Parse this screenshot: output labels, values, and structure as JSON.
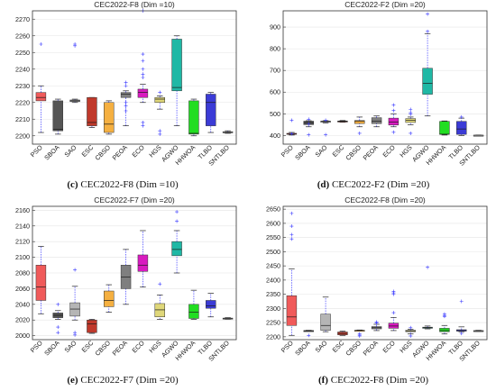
{
  "chart_data": [
    {
      "type": "box",
      "title": "CEC2022-F8 (Dim =10)",
      "caption_letter": "(c)",
      "caption_text": "CEC2022-F8 (Dim =10)",
      "ylim": [
        2195,
        2275
      ],
      "yticks": [
        2200,
        2210,
        2220,
        2230,
        2240,
        2250,
        2260,
        2270
      ],
      "categories": [
        "PSO",
        "SBOA",
        "SAO",
        "ESC",
        "CBSO",
        "PEOA",
        "ECO",
        "HGS",
        "AGWO",
        "HHWOA",
        "TLBO",
        "SNTLBO"
      ],
      "colors": [
        "#f05a5a",
        "#555555",
        "#b5b5b5",
        "#c0392b",
        "#f5b041",
        "#7f7f7f",
        "#d81bc0",
        "#dfd77a",
        "#1fb8a5",
        "#22dd22",
        "#3b3bd6",
        "#bbbbbb"
      ],
      "boxes": [
        {
          "whislo": 2202,
          "q1": 2221,
          "med": 2223,
          "q3": 2226,
          "whishi": 2230,
          "fliers": [
            2255
          ]
        },
        {
          "whislo": 2201,
          "q1": 2203,
          "med": 2204,
          "q3": 2221,
          "whishi": 2222,
          "fliers": []
        },
        {
          "whislo": 2220,
          "q1": 2220.5,
          "med": 2221,
          "q3": 2221.5,
          "whishi": 2222,
          "fliers": [
            2254,
            2255
          ]
        },
        {
          "whislo": 2205,
          "q1": 2206,
          "med": 2208,
          "q3": 2223,
          "whishi": 2223,
          "fliers": []
        },
        {
          "whislo": 2201,
          "q1": 2202,
          "med": 2207,
          "q3": 2220,
          "whishi": 2221,
          "fliers": []
        },
        {
          "whislo": 2206,
          "q1": 2223,
          "med": 2225,
          "q3": 2226,
          "whishi": 2227,
          "fliers": [
            2230,
            2232,
            2220,
            2218,
            2215
          ]
        },
        {
          "whislo": 2220,
          "q1": 2223,
          "med": 2226,
          "q3": 2228,
          "whishi": 2231,
          "fliers": [
            2275,
            2249,
            2245,
            2240,
            2237,
            2235,
            2208,
            2206
          ]
        },
        {
          "whislo": 2216,
          "q1": 2220,
          "med": 2222,
          "q3": 2223,
          "whishi": 2224,
          "fliers": [
            2226,
            2203,
            2201
          ]
        },
        {
          "whislo": 2206,
          "q1": 2227,
          "med": 2229,
          "q3": 2258,
          "whishi": 2260,
          "fliers": []
        },
        {
          "whislo": 2200,
          "q1": 2201,
          "med": 2201.5,
          "q3": 2221,
          "whishi": 2222,
          "fliers": []
        },
        {
          "whislo": 2202,
          "q1": 2206,
          "med": 2220,
          "q3": 2225,
          "whishi": 2226,
          "fliers": []
        },
        {
          "whislo": 2201.5,
          "q1": 2201.8,
          "med": 2202,
          "q3": 2202.5,
          "whishi": 2203,
          "fliers": []
        }
      ]
    },
    {
      "type": "box",
      "title": "CEC2022-F2 (Dim =20)",
      "caption_letter": "(d)",
      "caption_text": "CEC2022-F2 (Dim =20)",
      "ylim": [
        360,
        975
      ],
      "yticks": [
        400,
        500,
        600,
        700,
        800,
        900
      ],
      "categories": [
        "PSO",
        "SBOA",
        "SAO",
        "ESC",
        "CBSO",
        "PEOA",
        "ECO",
        "HGS",
        "AGWO",
        "HHWOA",
        "TLBO",
        "SNTLBO"
      ],
      "colors": [
        "#f05a5a",
        "#555555",
        "#b5b5b5",
        "#c0392b",
        "#f5b041",
        "#7f7f7f",
        "#d81bc0",
        "#dfd77a",
        "#1fb8a5",
        "#22dd22",
        "#3b3bd6",
        "#bbbbbb"
      ],
      "boxes": [
        {
          "whislo": 402,
          "q1": 405,
          "med": 408,
          "q3": 410,
          "whishi": 414,
          "fliers": [
            470,
            408
          ]
        },
        {
          "whislo": 440,
          "q1": 450,
          "med": 459,
          "q3": 466,
          "whishi": 468,
          "fliers": [
            403,
            475,
            454
          ]
        },
        {
          "whislo": 458,
          "q1": 461,
          "med": 465,
          "q3": 466,
          "whishi": 468,
          "fliers": [
            403,
            470
          ]
        },
        {
          "whislo": 461,
          "q1": 463,
          "med": 465,
          "q3": 467,
          "whishi": 469,
          "fliers": []
        },
        {
          "whislo": 440,
          "q1": 455,
          "med": 465,
          "q3": 469,
          "whishi": 485,
          "fliers": [
            410
          ]
        },
        {
          "whislo": 440,
          "q1": 455,
          "med": 466,
          "q3": 482,
          "whishi": 490,
          "fliers": []
        },
        {
          "whislo": 440,
          "q1": 448,
          "med": 462,
          "q3": 480,
          "whishi": 500,
          "fliers": [
            540,
            515,
            415
          ]
        },
        {
          "whislo": 450,
          "q1": 460,
          "med": 470,
          "q3": 478,
          "whishi": 485,
          "fliers": [
            520,
            505,
            498,
            410
          ]
        },
        {
          "whislo": 490,
          "q1": 590,
          "med": 640,
          "q3": 710,
          "whishi": 870,
          "fliers": [
            960,
            880
          ]
        },
        {
          "whislo": 402,
          "q1": 405,
          "med": 406,
          "q3": 465,
          "whishi": 467,
          "fliers": []
        },
        {
          "whislo": 400,
          "q1": 405,
          "med": 430,
          "q3": 465,
          "whishi": 480,
          "fliers": [
            485
          ]
        },
        {
          "whislo": 400,
          "q1": 400.5,
          "med": 401,
          "q3": 401.5,
          "whishi": 402,
          "fliers": []
        }
      ]
    },
    {
      "type": "box",
      "title": "CEC2022-F7 (Dim =20)",
      "caption_letter": "(e)",
      "caption_text": "CEC2022-F7 (Dim =20)",
      "ylim": [
        1995,
        2165
      ],
      "yticks": [
        2000,
        2020,
        2040,
        2060,
        2080,
        2100,
        2120,
        2140,
        2160
      ],
      "categories": [
        "PSO",
        "SBOA",
        "SAO",
        "ESC",
        "CBSO",
        "PEOA",
        "ECO",
        "HGS",
        "AGWO",
        "HHWOA",
        "TLBO",
        "SNTLBO"
      ],
      "colors": [
        "#f05a5a",
        "#555555",
        "#b5b5b5",
        "#c0392b",
        "#f5b041",
        "#7f7f7f",
        "#d81bc0",
        "#dfd77a",
        "#1fb8a5",
        "#22dd22",
        "#3b3bd6",
        "#bbbbbb"
      ],
      "boxes": [
        {
          "whislo": 2028,
          "q1": 2045,
          "med": 2062,
          "q3": 2090,
          "whishi": 2114,
          "fliers": []
        },
        {
          "whislo": 2021,
          "q1": 2023,
          "med": 2026,
          "q3": 2029,
          "whishi": 2032,
          "fliers": [
            2040,
            2011,
            2004
          ]
        },
        {
          "whislo": 2020,
          "q1": 2025,
          "med": 2034,
          "q3": 2042,
          "whishi": 2063,
          "fliers": [
            2084,
            2004,
            2001
          ]
        },
        {
          "whislo": 2003,
          "q1": 2004,
          "med": 2015,
          "q3": 2020,
          "whishi": 2021,
          "fliers": []
        },
        {
          "whislo": 2030,
          "q1": 2037,
          "med": 2045,
          "q3": 2057,
          "whishi": 2065,
          "fliers": []
        },
        {
          "whislo": 2040,
          "q1": 2060,
          "med": 2075,
          "q3": 2090,
          "whishi": 2110,
          "fliers": []
        },
        {
          "whislo": 2062,
          "q1": 2082,
          "med": 2090,
          "q3": 2103,
          "whishi": 2134,
          "fliers": []
        },
        {
          "whislo": 2021,
          "q1": 2024,
          "med": 2033,
          "q3": 2041,
          "whishi": 2052,
          "fliers": [
            2066
          ]
        },
        {
          "whislo": 2080,
          "q1": 2102,
          "med": 2110,
          "q3": 2120,
          "whishi": 2134,
          "fliers": [
            2158,
            2146
          ]
        },
        {
          "whislo": 2021,
          "q1": 2022,
          "med": 2030,
          "q3": 2040,
          "whishi": 2058,
          "fliers": []
        },
        {
          "whislo": 2024,
          "q1": 2035,
          "med": 2038,
          "q3": 2045,
          "whishi": 2054,
          "fliers": []
        },
        {
          "whislo": 2021,
          "q1": 2021.5,
          "med": 2022,
          "q3": 2022.5,
          "whishi": 2023,
          "fliers": []
        }
      ]
    },
    {
      "type": "box",
      "title": "CEC2022-F8 (Dim =20)",
      "caption_letter": "(f)",
      "caption_text": "CEC2022-F8 (Dim =20)",
      "ylim": [
        2190,
        2660
      ],
      "yticks": [
        2200,
        2250,
        2300,
        2350,
        2400,
        2450,
        2500,
        2550,
        2600,
        2650
      ],
      "categories": [
        "PSO",
        "SBOA",
        "SAO",
        "ESC",
        "CBSO",
        "PEOA",
        "ECO",
        "HGS",
        "AGWO",
        "HHWOA",
        "TLBO",
        "SNTLBO"
      ],
      "colors": [
        "#f05a5a",
        "#555555",
        "#b5b5b5",
        "#c0392b",
        "#f5b041",
        "#7f7f7f",
        "#d81bc0",
        "#dfd77a",
        "#1fb8a5",
        "#22dd22",
        "#3b3bd6",
        "#bbbbbb"
      ],
      "boxes": [
        {
          "whislo": 2205,
          "q1": 2240,
          "med": 2270,
          "q3": 2345,
          "whishi": 2440,
          "fliers": [
            2635,
            2590,
            2560,
            2545
          ]
        },
        {
          "whislo": 2220,
          "q1": 2221,
          "med": 2221.5,
          "q3": 2222,
          "whishi": 2223,
          "fliers": [
            2205
          ]
        },
        {
          "whislo": 2218,
          "q1": 2223,
          "med": 2240,
          "q3": 2280,
          "whishi": 2340,
          "fliers": []
        },
        {
          "whislo": 2205,
          "q1": 2207,
          "med": 2212,
          "q3": 2217,
          "whishi": 2220,
          "fliers": []
        },
        {
          "whislo": 2221,
          "q1": 2222,
          "med": 2222.5,
          "q3": 2223,
          "whishi": 2224,
          "fliers": [
            2210,
            2206,
            2203
          ]
        },
        {
          "whislo": 2222,
          "q1": 2228,
          "med": 2232,
          "q3": 2236,
          "whishi": 2244,
          "fliers": [
            2252,
            2248
          ]
        },
        {
          "whislo": 2222,
          "q1": 2230,
          "med": 2238,
          "q3": 2248,
          "whishi": 2268,
          "fliers": [
            2360,
            2355,
            2350,
            2285
          ]
        },
        {
          "whislo": 2210,
          "q1": 2218,
          "med": 2221,
          "q3": 2223,
          "whishi": 2227,
          "fliers": [
            2232,
            2203
          ]
        },
        {
          "whislo": 2228,
          "q1": 2230,
          "med": 2232,
          "q3": 2234,
          "whishi": 2238,
          "fliers": [
            2445
          ]
        },
        {
          "whislo": 2210,
          "q1": 2218,
          "med": 2222,
          "q3": 2230,
          "whishi": 2240,
          "fliers": [
            2280,
            2275,
            2272
          ]
        },
        {
          "whislo": 2218,
          "q1": 2220,
          "med": 2222,
          "q3": 2225,
          "whishi": 2235,
          "fliers": [
            2325,
            2212
          ]
        },
        {
          "whislo": 2219,
          "q1": 2220,
          "med": 2221,
          "q3": 2222,
          "whishi": 2223,
          "fliers": []
        }
      ]
    }
  ]
}
